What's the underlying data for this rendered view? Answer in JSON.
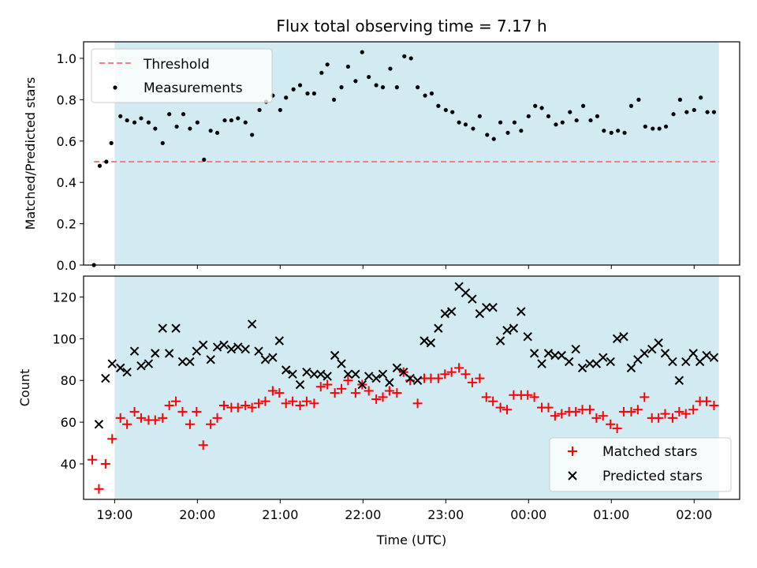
{
  "chart_data": [
    {
      "type": "scatter",
      "title": "Flux total observing time = 7.17 h",
      "xlabel": "",
      "ylabel": "Matched/Predicted stars",
      "ylim": [
        0,
        1.08
      ],
      "yticks": [
        "0.0",
        "0.2",
        "0.4",
        "0.6",
        "0.8",
        "1.0"
      ],
      "ytick_values": [
        0,
        0.2,
        0.4,
        0.6,
        0.8,
        1.0
      ],
      "xlim": [
        18.625,
        2.55
      ],
      "shaded_span": [
        19.0,
        2.3
      ],
      "shade_color": "#add8e6",
      "legend_position": "top-left",
      "grid": false,
      "threshold": {
        "name": "Threshold",
        "y": 0.5,
        "x_range": [
          18.75,
          2.3
        ],
        "color": "#f08080"
      },
      "series": [
        {
          "name": "Measurements",
          "marker": "dot",
          "color": "#000000",
          "x": [
            18.75,
            18.82,
            18.9,
            18.96,
            19.07,
            19.15,
            19.24,
            19.32,
            19.41,
            19.49,
            19.58,
            19.66,
            19.75,
            19.83,
            19.91,
            20.0,
            20.08,
            20.16,
            20.24,
            20.33,
            20.41,
            20.49,
            20.58,
            20.66,
            20.75,
            20.83,
            20.91,
            21.0,
            21.07,
            21.16,
            21.24,
            21.33,
            21.41,
            21.5,
            21.57,
            21.65,
            21.74,
            21.82,
            21.91,
            21.99,
            22.07,
            22.16,
            22.24,
            22.33,
            22.41,
            22.5,
            22.58,
            22.66,
            22.75,
            22.83,
            22.91,
            23.0,
            23.08,
            23.16,
            23.24,
            23.33,
            23.41,
            23.5,
            23.58,
            23.66,
            23.75,
            23.83,
            23.91,
            24.0,
            24.08,
            24.16,
            24.24,
            24.33,
            24.41,
            24.5,
            24.58,
            24.66,
            24.75,
            24.83,
            24.91,
            25.0,
            25.08,
            25.16,
            25.24,
            25.33,
            25.41,
            25.5,
            25.58,
            25.66,
            25.75,
            25.83,
            25.91,
            26.0,
            26.08,
            26.16,
            26.24
          ],
          "y": [
            0.0,
            0.48,
            0.5,
            0.59,
            0.72,
            0.7,
            0.69,
            0.71,
            0.69,
            0.66,
            0.59,
            0.73,
            0.67,
            0.73,
            0.66,
            0.69,
            0.51,
            0.65,
            0.64,
            0.7,
            0.7,
            0.71,
            0.69,
            0.63,
            0.75,
            0.79,
            0.82,
            0.75,
            0.81,
            0.85,
            0.87,
            0.83,
            0.83,
            0.93,
            0.97,
            0.8,
            0.86,
            0.96,
            0.89,
            1.03,
            0.91,
            0.87,
            0.86,
            0.95,
            0.86,
            1.01,
            1.0,
            0.86,
            0.82,
            0.83,
            0.77,
            0.75,
            0.74,
            0.69,
            0.68,
            0.66,
            0.72,
            0.63,
            0.61,
            0.69,
            0.64,
            0.69,
            0.65,
            0.72,
            0.77,
            0.76,
            0.72,
            0.68,
            0.69,
            0.74,
            0.7,
            0.77,
            0.7,
            0.72,
            0.65,
            0.64,
            0.65,
            0.64,
            0.77,
            0.8,
            0.67,
            0.66,
            0.66,
            0.67,
            0.73,
            0.8,
            0.74,
            0.75,
            0.81,
            0.74,
            0.74
          ]
        }
      ]
    },
    {
      "type": "scatter",
      "xlabel": "Time (UTC)",
      "ylabel": "Count",
      "ylim": [
        23,
        130
      ],
      "yticks": [
        "40",
        "60",
        "80",
        "100",
        "120"
      ],
      "ytick_values": [
        40,
        60,
        80,
        100,
        120
      ],
      "xlim": [
        18.625,
        2.55
      ],
      "xticks": [
        "19:00",
        "20:00",
        "21:00",
        "22:00",
        "23:00",
        "00:00",
        "01:00",
        "02:00"
      ],
      "xtick_values": [
        19,
        20,
        21,
        22,
        23,
        24,
        25,
        26
      ],
      "shaded_span": [
        19.0,
        2.3
      ],
      "shade_color": "#add8e6",
      "legend_position": "bottom-right",
      "grid": false,
      "series": [
        {
          "name": "Matched stars",
          "marker": "plus",
          "color": "#ff0000",
          "x": [
            18.73,
            18.81,
            18.89,
            18.97,
            19.07,
            19.15,
            19.24,
            19.32,
            19.41,
            19.49,
            19.58,
            19.66,
            19.74,
            19.82,
            19.91,
            19.99,
            20.07,
            20.16,
            20.24,
            20.32,
            20.41,
            20.49,
            20.58,
            20.66,
            20.74,
            20.82,
            20.91,
            20.99,
            21.07,
            21.15,
            21.24,
            21.32,
            21.41,
            21.49,
            21.57,
            21.66,
            21.74,
            21.82,
            21.91,
            21.99,
            22.07,
            22.16,
            22.24,
            22.32,
            22.41,
            22.49,
            22.57,
            22.66,
            22.74,
            22.82,
            22.91,
            22.99,
            23.07,
            23.16,
            23.24,
            23.32,
            23.41,
            23.49,
            23.57,
            23.66,
            23.74,
            23.82,
            23.91,
            23.99,
            24.07,
            24.16,
            24.24,
            24.32,
            24.4,
            24.49,
            24.57,
            24.65,
            24.74,
            24.82,
            24.9,
            24.99,
            25.07,
            25.15,
            25.24,
            25.32,
            25.4,
            25.49,
            25.57,
            25.65,
            25.74,
            25.82,
            25.9,
            25.99,
            26.07,
            26.15,
            26.24
          ],
          "y": [
            42,
            28,
            40,
            52,
            62,
            59,
            65,
            62,
            61,
            61,
            62,
            68,
            70,
            65,
            59,
            65,
            49,
            59,
            62,
            68,
            67,
            67,
            68,
            67,
            69,
            70,
            75,
            74,
            69,
            70,
            68,
            70,
            69,
            77,
            78,
            74,
            76,
            80,
            74,
            78,
            75,
            71,
            72,
            75,
            74,
            84,
            80,
            69,
            81,
            81,
            81,
            83,
            84,
            86,
            83,
            79,
            81,
            72,
            70,
            67,
            66,
            73,
            73,
            73,
            72,
            67,
            67,
            63,
            64,
            65,
            65,
            66,
            66,
            62,
            63,
            59,
            57,
            65,
            65,
            66,
            72,
            62,
            62,
            64,
            62,
            65,
            64,
            66,
            70,
            70,
            68
          ]
        },
        {
          "name": "Predicted stars",
          "marker": "x",
          "color": "#000000",
          "x": [
            18.81,
            18.89,
            18.97,
            19.07,
            19.15,
            19.24,
            19.32,
            19.41,
            19.49,
            19.58,
            19.66,
            19.74,
            19.82,
            19.91,
            19.99,
            20.07,
            20.16,
            20.24,
            20.32,
            20.41,
            20.49,
            20.58,
            20.66,
            20.74,
            20.82,
            20.91,
            20.99,
            21.07,
            21.15,
            21.24,
            21.32,
            21.41,
            21.49,
            21.57,
            21.66,
            21.74,
            21.82,
            21.91,
            21.99,
            22.07,
            22.16,
            22.24,
            22.32,
            22.41,
            22.49,
            22.57,
            22.66,
            22.74,
            22.82,
            22.91,
            22.99,
            23.07,
            23.16,
            23.24,
            23.32,
            23.41,
            23.49,
            23.57,
            23.66,
            23.74,
            23.82,
            23.91,
            23.99,
            24.07,
            24.16,
            24.24,
            24.32,
            24.4,
            24.49,
            24.57,
            24.65,
            24.74,
            24.82,
            24.9,
            24.99,
            25.07,
            25.15,
            25.24,
            25.32,
            25.4,
            25.49,
            25.57,
            25.65,
            25.74,
            25.82,
            25.9,
            25.99,
            26.07,
            26.15,
            26.24
          ],
          "y": [
            59,
            81,
            88,
            86,
            84,
            94,
            87,
            88,
            93,
            105,
            93,
            105,
            89,
            89,
            94,
            97,
            90,
            96,
            97,
            95,
            96,
            95,
            107,
            94,
            90,
            91,
            99,
            85,
            83,
            78,
            84,
            83,
            83,
            82,
            92,
            88,
            83,
            83,
            78,
            82,
            81,
            83,
            79,
            86,
            84,
            81,
            80,
            99,
            98,
            105,
            112,
            113,
            125,
            122,
            119,
            112,
            115,
            115,
            99,
            104,
            105,
            113,
            101,
            93,
            88,
            93,
            92,
            92,
            89,
            95,
            86,
            88,
            88,
            91,
            89,
            100,
            101,
            86,
            90,
            93,
            95,
            98,
            93,
            89,
            80,
            89,
            93,
            89,
            92,
            91
          ]
        }
      ]
    }
  ]
}
